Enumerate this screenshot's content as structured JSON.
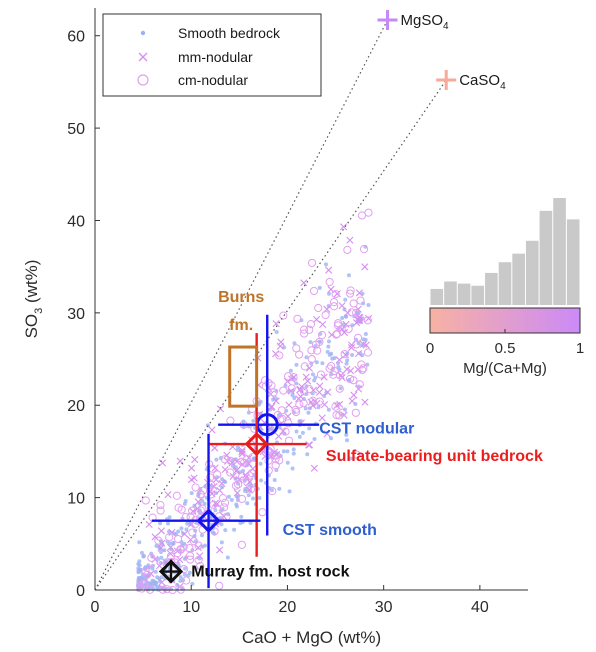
{
  "chart_data": {
    "type": "scatter",
    "xlabel": "CaO + MgO (wt%)",
    "ylabel": "SO3 (wt%)",
    "ylabel_main": "SO",
    "ylabel_sub": "3",
    "ylabel_tail": " (wt%)",
    "xlim": [
      0,
      45
    ],
    "ylim": [
      0,
      63
    ],
    "xticks": [
      "0",
      "10",
      "20",
      "30",
      "40"
    ],
    "yticks": [
      "0",
      "10",
      "20",
      "30",
      "40",
      "50",
      "60"
    ],
    "xtick_values": [
      0,
      10,
      20,
      30,
      40
    ],
    "ytick_values": [
      0,
      10,
      20,
      30,
      40,
      50,
      60
    ],
    "legend": {
      "placement": "top-left",
      "entries": [
        {
          "label": "Smooth bedrock",
          "marker": "dot",
          "color": "#9bb0f5"
        },
        {
          "label": "mm-nodular",
          "marker": "x",
          "color": "#d68ef0"
        },
        {
          "label": "cm-nodular",
          "marker": "circle",
          "color": "#e19ff2"
        }
      ]
    },
    "endmembers": [
      {
        "main": "MgSO",
        "sub": "4",
        "x": 30.4,
        "y": 61.7,
        "color": "#c58af5"
      },
      {
        "main": "CaSO",
        "sub": "4",
        "x": 36.5,
        "y": 55.2,
        "color": "#f7aa99"
      }
    ],
    "mixing_lines": [
      {
        "x1": 0,
        "y1": 0,
        "x2": 30.4,
        "y2": 61.7
      },
      {
        "x1": 0,
        "y1": 0,
        "x2": 36.5,
        "y2": 55.2
      }
    ],
    "summary_points": [
      {
        "label": "CST nodular",
        "x": 17.9,
        "y": 17.9,
        "marker": "circle",
        "color": "#1414f0",
        "xerr": [
          12.8,
          23.3
        ],
        "yerr": [
          5.9,
          29.8
        ],
        "label_color": "#2e5fd0",
        "label_x": 23.3,
        "label_y": 17.5
      },
      {
        "label": "Sulfate-bearing unit bedrock",
        "x": 16.8,
        "y": 15.8,
        "marker": "diamond",
        "color": "#e81e1e",
        "xerr": [
          11.9,
          22.0
        ],
        "yerr": [
          3.6,
          27.8
        ],
        "label_color": "#ef1c1c",
        "label_x": 24.0,
        "label_y": 14.5
      },
      {
        "label": "CST smooth",
        "x": 11.8,
        "y": 7.5,
        "marker": "diamond",
        "color": "#1414f0",
        "xerr": [
          5.9,
          17.2
        ],
        "yerr": [
          0.2,
          16.9
        ],
        "label_color": "#2e5fd0",
        "label_x": 19.5,
        "label_y": 6.5
      },
      {
        "label": "Murray fm. host rock",
        "x": 7.9,
        "y": 2.0,
        "marker": "diamond",
        "color": "#111111",
        "xerr": [
          6.9,
          9.0
        ],
        "yerr": [
          0.9,
          3.3
        ],
        "label_color": "#111111",
        "label_x": 10.0,
        "label_y": 2.0
      }
    ],
    "burns_fm": {
      "label_line1": "Burns",
      "label_line2": "fm.",
      "color": "#c0742a",
      "box_x": [
        14.0,
        16.8
      ],
      "box_y": [
        19.9,
        26.3
      ]
    },
    "inset_histogram": {
      "xlabel": "Mg/(Ca+Mg)",
      "ticks": [
        "0",
        "0.5",
        "1"
      ],
      "tick_values": [
        0,
        0.5,
        1
      ],
      "bars": [
        0.15,
        0.22,
        0.2,
        0.18,
        0.3,
        0.4,
        0.48,
        0.6,
        0.88,
        1.0,
        0.8
      ],
      "bar_color": "#c9c9c9",
      "colorbar_from": "#f7b2a4",
      "colorbar_to": "#cb8af7"
    },
    "scatter_series": [
      {
        "name": "Smooth bedrock",
        "marker": "dot",
        "color": "#9eb3f3",
        "count": 420
      },
      {
        "name": "mm-nodular",
        "marker": "x",
        "color": "#d58ff0",
        "count": 170
      },
      {
        "name": "cm-nodular",
        "marker": "circle",
        "color": "#e2a0f1",
        "count": 190
      }
    ]
  }
}
